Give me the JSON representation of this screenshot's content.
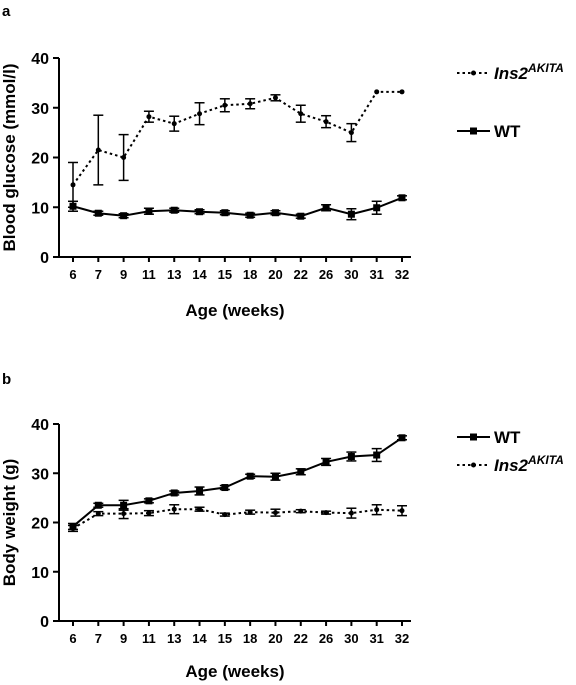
{
  "chart_data": [
    {
      "panel": "a",
      "type": "line",
      "categories": [
        "6",
        "7",
        "9",
        "11",
        "13",
        "14",
        "15",
        "18",
        "20",
        "22",
        "26",
        "30",
        "31",
        "32"
      ],
      "xlabel": "Age (weeks)",
      "ylabel": "Blood glucose (mmol/l)",
      "ylim": [
        0,
        40
      ],
      "yticks": [
        0,
        10,
        20,
        30,
        40
      ],
      "legend_position": "top-right",
      "series": [
        {
          "name": "Ins2",
          "superscript": "AKITA",
          "style": "dotted",
          "marker": "circle",
          "color": "#000000",
          "values": [
            14.5,
            21.5,
            20.0,
            28.2,
            26.8,
            28.8,
            30.5,
            30.8,
            32.0,
            28.8,
            27.2,
            25.0,
            33.2,
            33.2
          ],
          "errors": [
            4.5,
            7.0,
            4.6,
            1.1,
            1.5,
            2.2,
            1.3,
            1.0,
            0.6,
            1.7,
            1.2,
            1.8,
            0,
            0
          ]
        },
        {
          "name": "WT",
          "style": "solid",
          "marker": "square",
          "color": "#000000",
          "values": [
            10.2,
            8.8,
            8.3,
            9.2,
            9.4,
            9.1,
            8.9,
            8.4,
            8.9,
            8.2,
            9.9,
            8.6,
            9.9,
            11.9
          ],
          "errors": [
            1.0,
            0.4,
            0.4,
            0.6,
            0.4,
            0.4,
            0.4,
            0.4,
            0.4,
            0.4,
            0.6,
            1.1,
            1.3,
            0.4
          ]
        }
      ]
    },
    {
      "panel": "b",
      "type": "line",
      "categories": [
        "6",
        "7",
        "9",
        "11",
        "13",
        "14",
        "15",
        "18",
        "20",
        "22",
        "26",
        "30",
        "31",
        "32"
      ],
      "xlabel": "Age (weeks)",
      "ylabel": "Body weight (g)",
      "ylim": [
        0,
        40
      ],
      "yticks": [
        0,
        10,
        20,
        30,
        40
      ],
      "legend_position": "top-right",
      "series": [
        {
          "name": "WT",
          "style": "solid",
          "marker": "square",
          "color": "#000000",
          "values": [
            19.2,
            23.5,
            23.5,
            24.4,
            26.0,
            26.4,
            27.1,
            29.4,
            29.3,
            30.3,
            32.3,
            33.4,
            33.7,
            37.2
          ],
          "errors": [
            0.6,
            0.4,
            1.0,
            0.4,
            0.4,
            0.8,
            0.4,
            0.4,
            0.7,
            0.6,
            0.7,
            0.9,
            1.3,
            0.4
          ]
        },
        {
          "name": "Ins2",
          "superscript": "AKITA",
          "style": "dotted",
          "marker": "circle",
          "color": "#000000",
          "values": [
            18.8,
            21.8,
            21.8,
            21.9,
            22.7,
            22.7,
            21.6,
            22.1,
            22.0,
            22.3,
            22.0,
            21.9,
            22.6,
            22.4
          ],
          "errors": [
            0.6,
            0.4,
            1.0,
            0.5,
            0.9,
            0.4,
            0.3,
            0.4,
            0.7,
            0.3,
            0.3,
            1.0,
            1.0,
            1.0
          ]
        }
      ]
    }
  ]
}
